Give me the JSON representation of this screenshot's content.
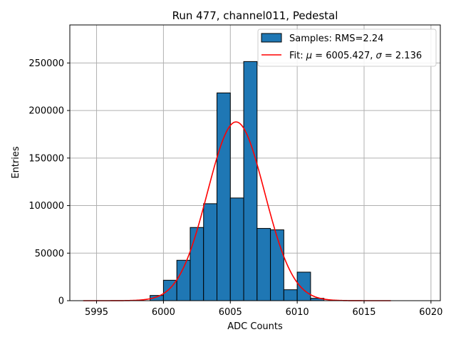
{
  "chart_data": {
    "type": "bar",
    "title": "Run 477, channel011, Pedestal",
    "xlabel": "ADC Counts",
    "ylabel": "Entries",
    "xlim": [
      5993,
      6020.7
    ],
    "ylim": [
      0,
      290000
    ],
    "grid": true,
    "legend_position": "top-right",
    "xticks": [
      5995,
      6000,
      6005,
      6010,
      6015,
      6020
    ],
    "xtick_labels": [
      "5995",
      "6000",
      "6005",
      "6010",
      "6015",
      "6020"
    ],
    "yticks": [
      0,
      50000,
      100000,
      150000,
      200000,
      250000
    ],
    "ytick_labels": [
      "0",
      "50000",
      "100000",
      "150000",
      "200000",
      "250000"
    ],
    "histogram": {
      "bin_width": 1,
      "bin_starts": [
        5999,
        6000,
        6001,
        6002,
        6003,
        6004,
        6005,
        6006,
        6007,
        6008,
        6009,
        6010,
        6011
      ],
      "counts": [
        5500,
        21500,
        42500,
        77000,
        102000,
        218500,
        108000,
        251500,
        76000,
        74500,
        11500,
        30000,
        2500
      ],
      "face_color": "#1f77b4",
      "edge_color": "#000000"
    },
    "fit": {
      "function": "gaussian",
      "mu": 6005.427,
      "sigma": 2.136,
      "amplitude": 188000,
      "x_range": [
        5994,
        6017
      ],
      "color": "#ff0000"
    },
    "legend": [
      {
        "kind": "patch",
        "label": "Samples: RMS=2.24"
      },
      {
        "kind": "line",
        "label_prefix": "Fit: ",
        "mu_symbol": "μ",
        "mu_text": " = 6005.427, ",
        "sigma_symbol": "σ",
        "sigma_text": " = 2.136"
      }
    ]
  }
}
